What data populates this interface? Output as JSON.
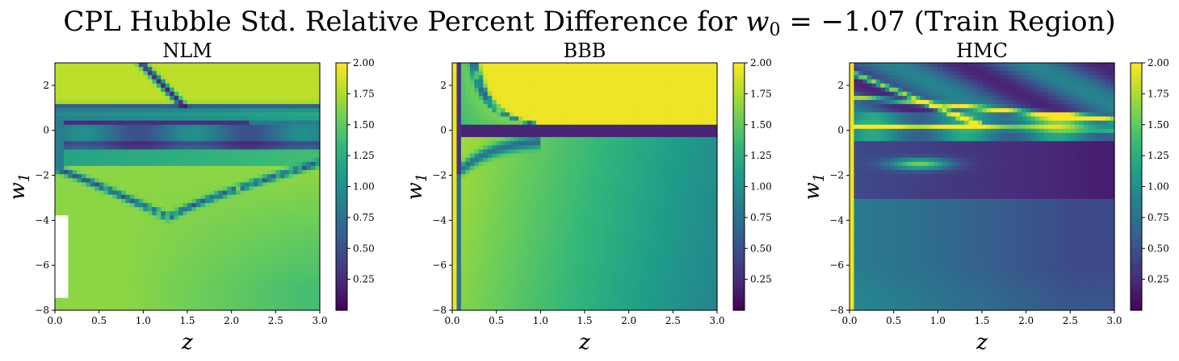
{
  "figure": {
    "title_prefix": "CPL Hubble Std. Relative Percent Difference for ",
    "title_math": "w",
    "title_math_sub": "0",
    "title_math_rest": " = −1.07",
    "title_suffix": " (Train Region)"
  },
  "chart_data": [
    {
      "type": "heatmap",
      "title": "NLM",
      "xlabel": "z",
      "ylabel": "w",
      "ylabel_sub": "1",
      "xlim": [
        0.0,
        3.0
      ],
      "ylim": [
        -8,
        3
      ],
      "xticks": [
        "0.0",
        "0.5",
        "1.0",
        "1.5",
        "2.0",
        "2.5",
        "3.0"
      ],
      "yticks": [
        "−8",
        "−6",
        "−4",
        "−2",
        "0",
        "2"
      ],
      "colorbar": {
        "range": [
          0.0,
          2.0
        ],
        "ticks": [
          "0.25",
          "0.50",
          "0.75",
          "1.00",
          "1.25",
          "1.50",
          "1.75",
          "2.00"
        ],
        "colormap": "viridis"
      }
    },
    {
      "type": "heatmap",
      "title": "BBB",
      "xlabel": "z",
      "ylabel": "w",
      "ylabel_sub": "1",
      "xlim": [
        0.0,
        3.0
      ],
      "ylim": [
        -8,
        3
      ],
      "xticks": [
        "0.0",
        "0.5",
        "1.0",
        "1.5",
        "2.0",
        "2.5",
        "3.0"
      ],
      "yticks": [
        "−8",
        "−6",
        "−4",
        "−2",
        "0",
        "2"
      ],
      "colorbar": {
        "range": [
          0.0,
          2.0
        ],
        "ticks": [
          "0.25",
          "0.50",
          "0.75",
          "1.00",
          "1.25",
          "1.50",
          "1.75",
          "2.00"
        ],
        "colormap": "viridis"
      }
    },
    {
      "type": "heatmap",
      "title": "HMC",
      "xlabel": "z",
      "ylabel": "w",
      "ylabel_sub": "1",
      "xlim": [
        0.0,
        3.0
      ],
      "ylim": [
        -8,
        3
      ],
      "xticks": [
        "0.0",
        "0.5",
        "1.0",
        "1.5",
        "2.0",
        "2.5",
        "3.0"
      ],
      "yticks": [
        "−8",
        "−6",
        "−4",
        "−2",
        "0",
        "2"
      ],
      "colorbar": {
        "range": [
          0.0,
          2.0
        ],
        "ticks": [
          "0.25",
          "0.50",
          "0.75",
          "1.00",
          "1.25",
          "1.50",
          "1.75",
          "2.00"
        ],
        "colormap": "viridis"
      }
    }
  ]
}
